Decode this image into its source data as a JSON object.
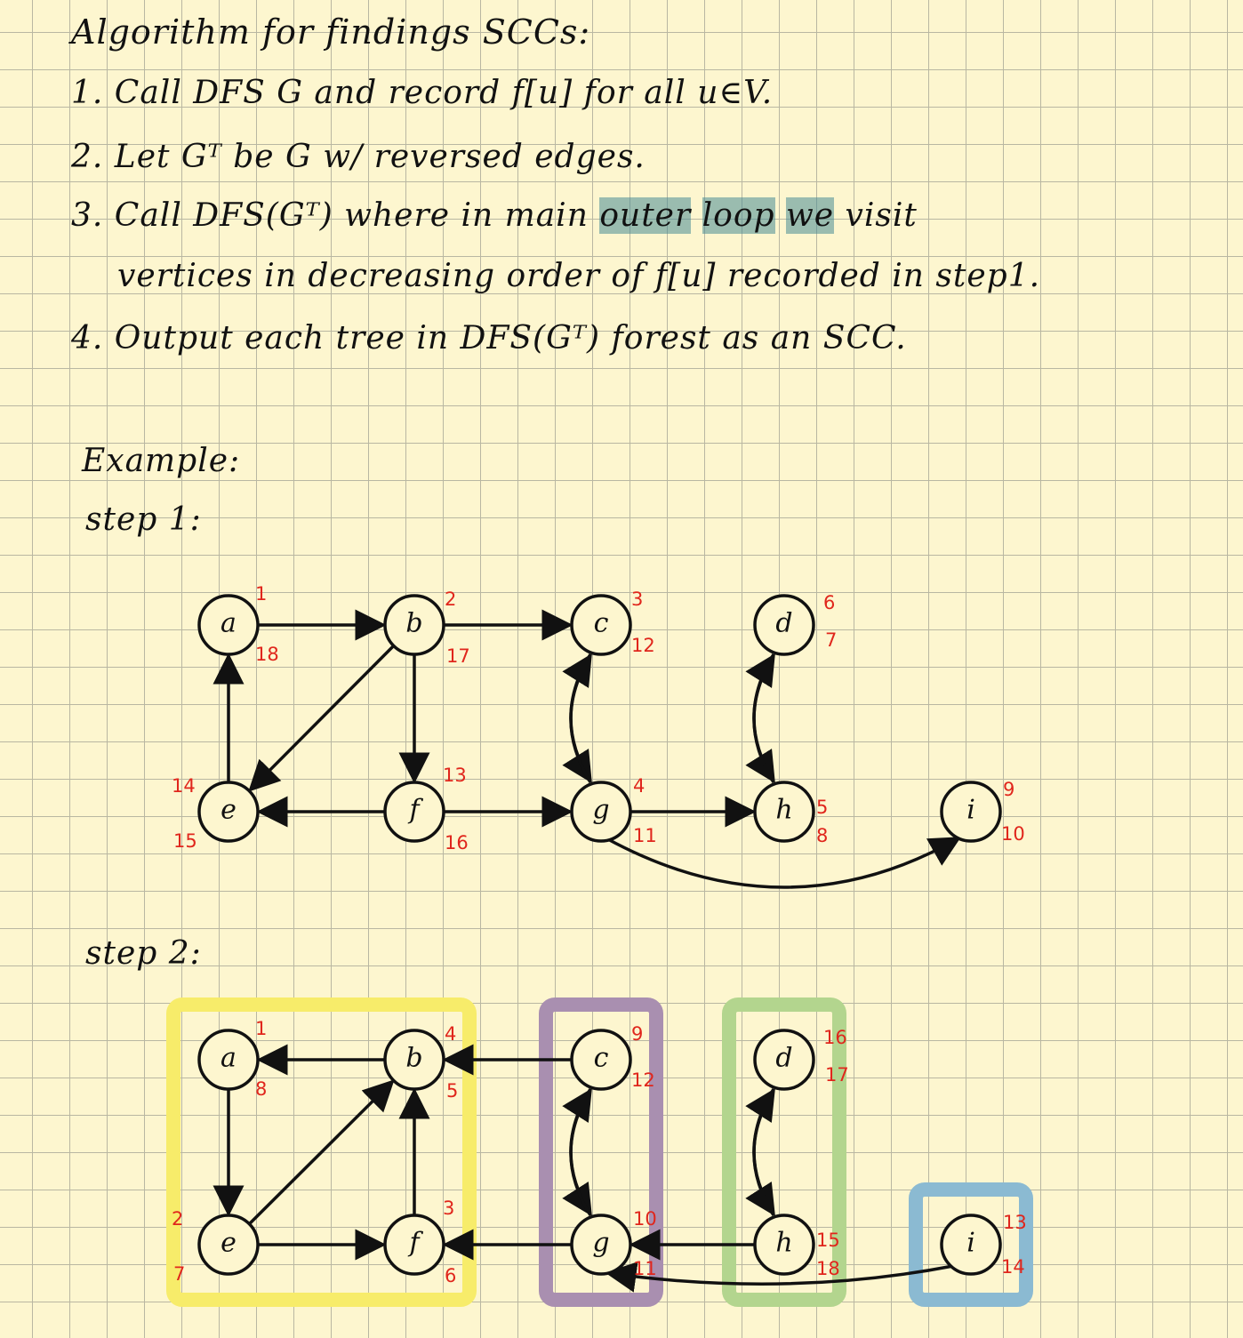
{
  "notes": {
    "title": "Algorithm for findings SCCs:",
    "step1": "1. Call DFS G and record f[u] for all u∈V.",
    "step2": "2. Let Gᵀ be G w/ reversed edges.",
    "step3_a": "3. Call DFS(Gᵀ) where in main ",
    "step3_h1": "outer",
    "step3_h2": "loop",
    "step3_h3": "we",
    "step3_b": " visit",
    "step3_c": "vertices in decreasing order of f[u] recorded in step1.",
    "step4": "4. Output each tree in DFS(Gᵀ) forest as an SCC.",
    "example": "Example:",
    "step_one_label": "step 1:",
    "step_two_label": "step 2:"
  },
  "colors": {
    "ink": "#111111",
    "timestamp": "#e0261c",
    "highlight": "#6fa7ad",
    "scc_abef": "#f7ec6a",
    "scc_cg": "#a98fb0",
    "scc_dh": "#b3d58e",
    "scc_i": "#8bbad2"
  },
  "graph1": {
    "nodes": [
      {
        "id": "a",
        "label": "a",
        "d": "1",
        "f": "18"
      },
      {
        "id": "b",
        "label": "b",
        "d": "2",
        "f": "17"
      },
      {
        "id": "c",
        "label": "c",
        "d": "3",
        "f": "12"
      },
      {
        "id": "d",
        "label": "d",
        "d": "6",
        "f": "7"
      },
      {
        "id": "e",
        "label": "e",
        "d": "14",
        "f": "15"
      },
      {
        "id": "f",
        "label": "f",
        "d": "13",
        "f": "16"
      },
      {
        "id": "g",
        "label": "g",
        "d": "4",
        "f": "11"
      },
      {
        "id": "h",
        "label": "h",
        "d": "5",
        "f": "8"
      },
      {
        "id": "i",
        "label": "i",
        "d": "9",
        "f": "10"
      }
    ],
    "edges": [
      {
        "from": "a",
        "to": "b"
      },
      {
        "from": "b",
        "to": "c"
      },
      {
        "from": "b",
        "to": "e"
      },
      {
        "from": "b",
        "to": "f"
      },
      {
        "from": "e",
        "to": "a"
      },
      {
        "from": "f",
        "to": "e"
      },
      {
        "from": "f",
        "to": "g"
      },
      {
        "from": "c",
        "to": "g"
      },
      {
        "from": "g",
        "to": "c"
      },
      {
        "from": "g",
        "to": "h"
      },
      {
        "from": "g",
        "to": "i"
      },
      {
        "from": "d",
        "to": "h"
      },
      {
        "from": "h",
        "to": "d"
      }
    ]
  },
  "graph2": {
    "nodes": [
      {
        "id": "a",
        "label": "a",
        "d": "1",
        "f": "8"
      },
      {
        "id": "b",
        "label": "b",
        "d": "4",
        "f": "5"
      },
      {
        "id": "c",
        "label": "c",
        "d": "9",
        "f": "12"
      },
      {
        "id": "d",
        "label": "d",
        "d": "16",
        "f": "17"
      },
      {
        "id": "e",
        "label": "e",
        "d": "2",
        "f": "7"
      },
      {
        "id": "f",
        "label": "f",
        "d": "3",
        "f": "6"
      },
      {
        "id": "g",
        "label": "g",
        "d": "10",
        "f": "11"
      },
      {
        "id": "h",
        "label": "h",
        "d": "15",
        "f": "18"
      },
      {
        "id": "i",
        "label": "i",
        "d": "13",
        "f": "14"
      }
    ],
    "edges": [
      {
        "from": "b",
        "to": "a"
      },
      {
        "from": "c",
        "to": "b"
      },
      {
        "from": "a",
        "to": "e"
      },
      {
        "from": "e",
        "to": "b"
      },
      {
        "from": "e",
        "to": "f"
      },
      {
        "from": "f",
        "to": "b"
      },
      {
        "from": "g",
        "to": "f"
      },
      {
        "from": "c",
        "to": "g"
      },
      {
        "from": "g",
        "to": "c"
      },
      {
        "from": "h",
        "to": "g"
      },
      {
        "from": "i",
        "to": "g"
      },
      {
        "from": "d",
        "to": "h"
      },
      {
        "from": "h",
        "to": "d"
      }
    ],
    "scc_groups": [
      {
        "id": "abef",
        "members": [
          "a",
          "b",
          "e",
          "f"
        ]
      },
      {
        "id": "cg",
        "members": [
          "c",
          "g"
        ]
      },
      {
        "id": "dh",
        "members": [
          "d",
          "h"
        ]
      },
      {
        "id": "i",
        "members": [
          "i"
        ]
      }
    ]
  }
}
